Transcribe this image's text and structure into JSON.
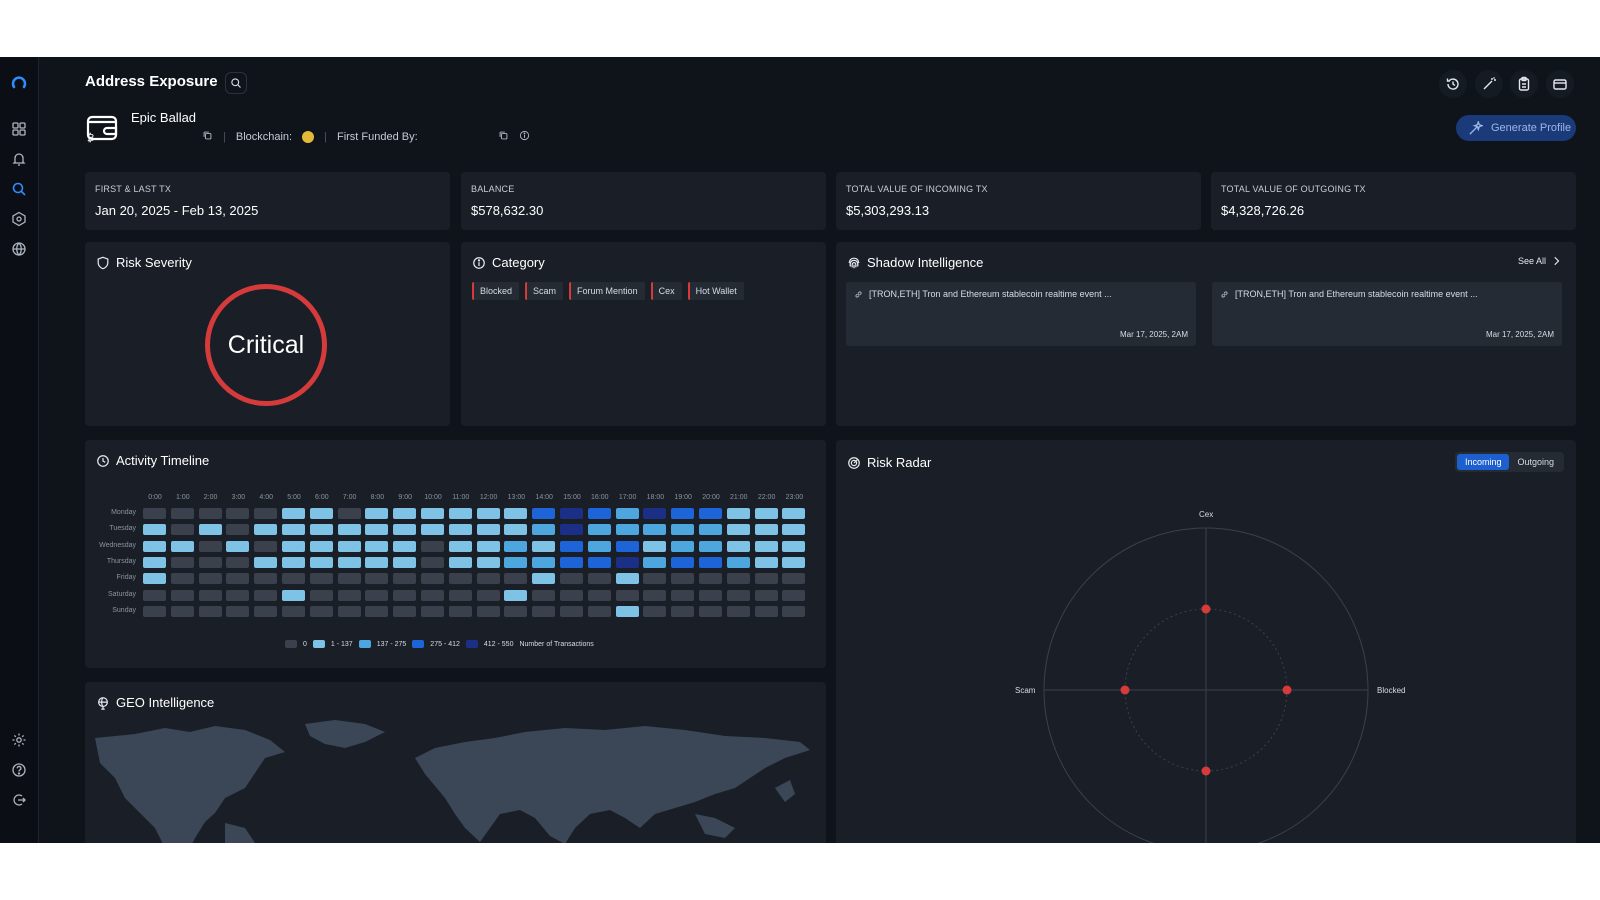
{
  "header": {
    "title": "Address Exposure"
  },
  "profile": {
    "name": "Epic Ballad",
    "blockchain_label": "Blockchain:",
    "first_funded_label": "First Funded By:",
    "generate_label": "Generate Profile"
  },
  "stats": [
    {
      "label": "FIRST & LAST TX",
      "value": "Jan 20, 2025 - Feb 13, 2025"
    },
    {
      "label": "BALANCE",
      "value": "$578,632.30"
    },
    {
      "label": "TOTAL VALUE OF INCOMING TX",
      "value": "$5,303,293.13"
    },
    {
      "label": "TOTAL VALUE OF OUTGOING TX",
      "value": "$4,328,726.26"
    }
  ],
  "risk": {
    "title": "Risk Severity",
    "level": "Critical"
  },
  "category": {
    "title": "Category",
    "tags": [
      "Blocked",
      "Scam",
      "Forum Mention",
      "Cex",
      "Hot Wallet"
    ]
  },
  "shadow": {
    "title": "Shadow Intelligence",
    "see_all": "See All",
    "items": [
      {
        "text": "[TRON,ETH] Tron and Ethereum stablecoin realtime event ...",
        "date": "Mar 17, 2025, 2AM"
      },
      {
        "text": "[TRON,ETH] Tron and Ethereum stablecoin realtime event ...",
        "date": "Mar 17, 2025, 2AM"
      }
    ]
  },
  "activity": {
    "title": "Activity Timeline",
    "hours": [
      "0:00",
      "1:00",
      "2:00",
      "3:00",
      "4:00",
      "5:00",
      "6:00",
      "7:00",
      "8:00",
      "9:00",
      "10:00",
      "11:00",
      "12:00",
      "13:00",
      "14:00",
      "15:00",
      "16:00",
      "17:00",
      "18:00",
      "19:00",
      "20:00",
      "21:00",
      "22:00",
      "23:00"
    ],
    "days": [
      "Monday",
      "Tuesday",
      "Wednesday",
      "Thursday",
      "Friday",
      "Saturday",
      "Sunday"
    ],
    "levels": [
      [
        0,
        0,
        0,
        0,
        0,
        1,
        1,
        0,
        1,
        1,
        1,
        1,
        1,
        1,
        3,
        4,
        3,
        2,
        4,
        3,
        3,
        1,
        1,
        1
      ],
      [
        1,
        0,
        1,
        0,
        1,
        1,
        1,
        1,
        1,
        1,
        1,
        1,
        1,
        1,
        2,
        4,
        2,
        2,
        2,
        2,
        2,
        1,
        1,
        1
      ],
      [
        1,
        1,
        0,
        1,
        0,
        1,
        1,
        1,
        1,
        1,
        0,
        1,
        1,
        2,
        1,
        3,
        2,
        3,
        1,
        2,
        2,
        1,
        1,
        1
      ],
      [
        1,
        0,
        0,
        0,
        1,
        1,
        1,
        1,
        1,
        1,
        0,
        1,
        1,
        2,
        2,
        3,
        3,
        4,
        2,
        3,
        3,
        2,
        1,
        1
      ],
      [
        1,
        0,
        0,
        0,
        0,
        0,
        0,
        0,
        0,
        0,
        0,
        0,
        0,
        0,
        1,
        0,
        0,
        1,
        0,
        0,
        0,
        0,
        0,
        0
      ],
      [
        0,
        0,
        0,
        0,
        0,
        1,
        0,
        0,
        0,
        0,
        0,
        0,
        0,
        1,
        0,
        0,
        0,
        0,
        0,
        0,
        0,
        0,
        0,
        0
      ],
      [
        0,
        0,
        0,
        0,
        0,
        0,
        0,
        0,
        0,
        0,
        0,
        0,
        0,
        0,
        0,
        0,
        0,
        1,
        0,
        0,
        0,
        0,
        0,
        0
      ]
    ],
    "legend": [
      "0",
      "1 - 137",
      "137 - 275",
      "275 - 412",
      "412 - 550"
    ],
    "legend_title": "Number of Transactions",
    "colors": [
      "#3a414c",
      "#7ec3e6",
      "#4ea6de",
      "#1d64d8",
      "#1c2f86"
    ]
  },
  "radar": {
    "title": "Risk Radar",
    "tabs": [
      "Incoming",
      "Outgoing"
    ],
    "active_tab": "Incoming",
    "axes": [
      "Cex",
      "Blocked",
      "Scam"
    ],
    "point_color": "#d63b3b"
  },
  "geo": {
    "title": "GEO Intelligence"
  }
}
